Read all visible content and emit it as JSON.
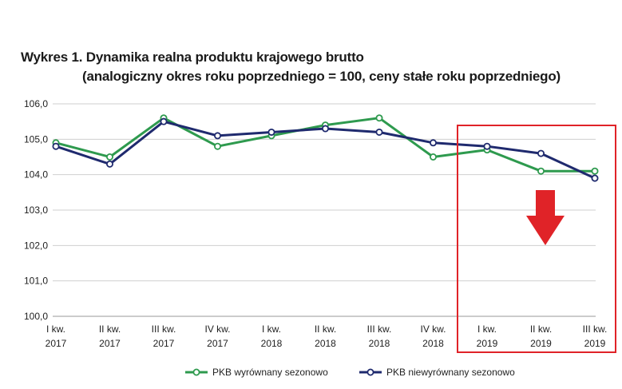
{
  "chart_data": {
    "type": "line",
    "title": "Wykres 1. Dynamika realna produktu krajowego brutto",
    "subtitle": "(analogiczny okres roku poprzedniego = 100, ceny stałe roku poprzedniego)",
    "categories": [
      [
        "I kw.",
        "2017"
      ],
      [
        "II kw.",
        "2017"
      ],
      [
        "III kw.",
        "2017"
      ],
      [
        "IV kw.",
        "2017"
      ],
      [
        "I kw.",
        "2018"
      ],
      [
        "II kw.",
        "2018"
      ],
      [
        "III kw.",
        "2018"
      ],
      [
        "IV kw.",
        "2018"
      ],
      [
        "I kw.",
        "2019"
      ],
      [
        "II kw.",
        "2019"
      ],
      [
        "III kw.",
        "2019"
      ]
    ],
    "yticks": [
      "100,0",
      "101,0",
      "102,0",
      "103,0",
      "104,0",
      "105,0",
      "106,0"
    ],
    "ylim": [
      100,
      106
    ],
    "grid": true,
    "legend_position": "bottom",
    "series": [
      {
        "name": "PKB wyrównany sezonowo",
        "color": "#2e9a4e",
        "values": [
          104.9,
          104.5,
          105.6,
          104.8,
          105.1,
          105.4,
          105.6,
          104.5,
          104.7,
          104.1,
          104.1
        ]
      },
      {
        "name": "PKB niewyrównany sezonowo",
        "color": "#1f2a6e",
        "values": [
          104.8,
          104.3,
          105.5,
          105.1,
          105.2,
          105.3,
          105.2,
          104.9,
          104.8,
          104.6,
          103.9
        ]
      }
    ],
    "annotation": {
      "type": "highlight-box-with-down-arrow",
      "color": "#e02328",
      "from_category_index": 8,
      "to_category_index": 10
    }
  }
}
